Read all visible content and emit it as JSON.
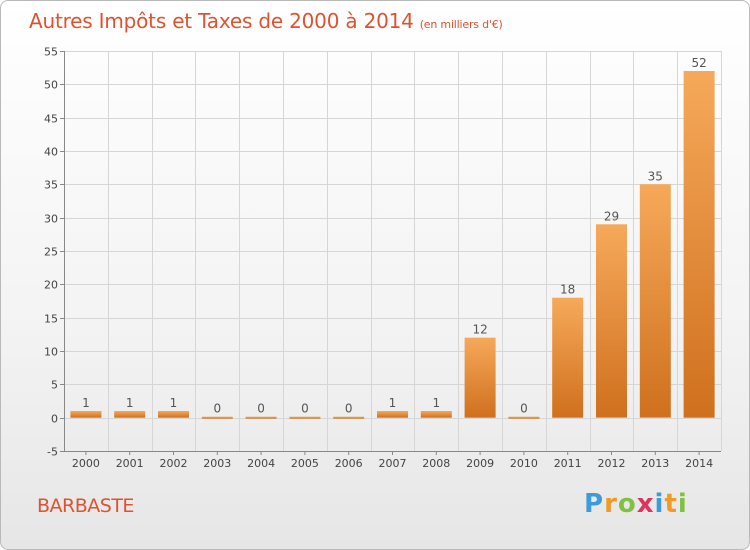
{
  "title": {
    "main": "Autres Impôts et Taxes de 2000 à 2014",
    "unit": "(en milliers d'€)"
  },
  "commune": "BARBASTE",
  "brand": {
    "letters": [
      "P",
      "r",
      "o",
      "x",
      "i",
      "t",
      "i"
    ],
    "colors": [
      "#3d9cd8",
      "#f19a25",
      "#7fc241",
      "#e0335b",
      "#3d9cd8",
      "#f19a25",
      "#7fc241"
    ]
  },
  "colors": {
    "bar_light": "#f6a95a",
    "bar_dark": "#cf701e",
    "grid": "#d6d6d6",
    "title": "#e0522d"
  },
  "chart_data": {
    "type": "bar",
    "categories": [
      "2000",
      "2001",
      "2002",
      "2003",
      "2004",
      "2005",
      "2006",
      "2007",
      "2008",
      "2009",
      "2010",
      "2011",
      "2012",
      "2013",
      "2014"
    ],
    "values": [
      1,
      1,
      1,
      0,
      0,
      0,
      0,
      1,
      1,
      12,
      0,
      18,
      29,
      35,
      52
    ],
    "ylim": [
      -5,
      55
    ],
    "yticks": [
      -5,
      0,
      5,
      10,
      15,
      20,
      25,
      30,
      35,
      40,
      45,
      50,
      55
    ],
    "grid": true,
    "xlabel": "",
    "ylabel": ""
  }
}
